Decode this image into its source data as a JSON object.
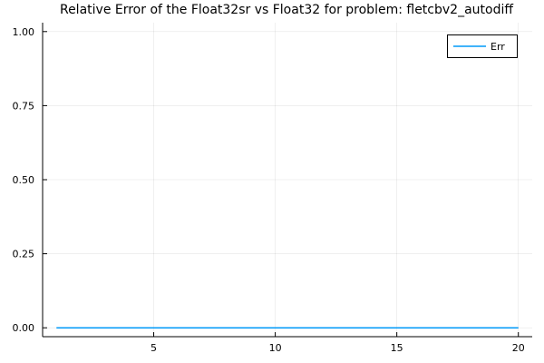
{
  "chart_data": {
    "type": "line",
    "title": "Relative Error of the Float32sr vs Float32 for problem: fletcbv2_autodiff",
    "xlabel": "",
    "ylabel": "",
    "xlim": [
      0.43,
      20.57
    ],
    "ylim": [
      -0.03,
      1.03
    ],
    "xticks": [
      5,
      10,
      15,
      20
    ],
    "yticks": [
      0.0,
      0.25,
      0.5,
      0.75,
      1.0
    ],
    "xtick_labels": [
      "5",
      "10",
      "15",
      "20"
    ],
    "ytick_labels": [
      "0.00",
      "0.25",
      "0.50",
      "0.75",
      "1.00"
    ],
    "grid": true,
    "legend_position": "top-right",
    "series": [
      {
        "name": "Err",
        "color": "#009af9",
        "x": [
          1,
          2,
          3,
          4,
          5,
          6,
          7,
          8,
          9,
          10,
          11,
          12,
          13,
          14,
          15,
          16,
          17,
          18,
          19,
          20
        ],
        "y": [
          0,
          0,
          0,
          0,
          0,
          0,
          0,
          0,
          0,
          0,
          0,
          0,
          0,
          0,
          0,
          0,
          0,
          0,
          0,
          0
        ]
      }
    ]
  }
}
